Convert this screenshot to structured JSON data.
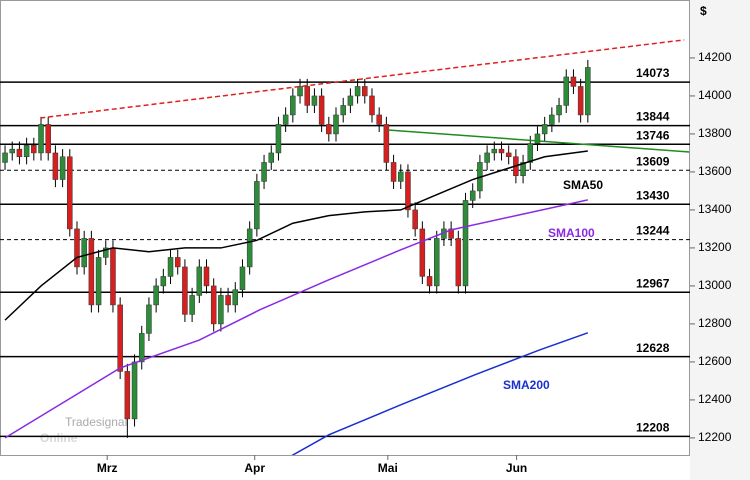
{
  "chart_data": {
    "type": "candlestick",
    "currency_label": "$",
    "watermark": {
      "brand": "Tradesignal",
      "product": "Online"
    },
    "xlim": [
      -0.7,
      95.2
    ],
    "xticks": [
      {
        "value": 14.2,
        "label": "Mrz"
      },
      {
        "value": 34.7,
        "label": "Apr"
      },
      {
        "value": 53.2,
        "label": "Mai"
      },
      {
        "value": 71.1,
        "label": "Jun"
      }
    ],
    "ylim": [
      12110,
      14505
    ],
    "yticks": [
      12200,
      12400,
      12600,
      12800,
      13000,
      13200,
      13400,
      13600,
      13800,
      14000,
      14200
    ],
    "up_color": "#2e8b3a",
    "down_color": "#d62020",
    "open": [
      13650,
      13700,
      13720,
      13680,
      13740,
      13700,
      13850,
      13700,
      13560,
      13680,
      13300,
      13100,
      13250,
      12900,
      13150,
      13200,
      12900,
      12550,
      12300,
      12600,
      12750,
      12900,
      13000,
      13050,
      13150,
      13100,
      12850,
      12950,
      13100,
      13000,
      12800,
      12950,
      12900,
      12980,
      13100,
      13300,
      13550,
      13650,
      13700,
      13850,
      13900,
      14000,
      14050,
      13950,
      14000,
      13850,
      13800,
      13900,
      13950,
      14000,
      14050,
      14000,
      13900,
      13850,
      13650,
      13550,
      13600,
      13400,
      13300,
      13050,
      13000,
      13250,
      13300,
      13250,
      13000,
      13450,
      13500,
      13650,
      13700,
      13720,
      13700,
      13680,
      13580,
      13650,
      13750,
      13800,
      13850,
      13900,
      13950,
      14100,
      14050,
      13900
    ],
    "high": [
      13740,
      13760,
      13760,
      13780,
      13780,
      13890,
      13890,
      13740,
      13720,
      13720,
      13340,
      13290,
      13290,
      13190,
      13240,
      13240,
      12940,
      12590,
      12640,
      12790,
      12940,
      13040,
      13090,
      13190,
      13190,
      13140,
      12990,
      13140,
      13140,
      13040,
      12990,
      12990,
      13020,
      13140,
      13340,
      13590,
      13690,
      13740,
      13890,
      13940,
      14040,
      14090,
      14090,
      14040,
      14040,
      13890,
      13940,
      13990,
      14040,
      14090,
      14090,
      14040,
      13940,
      13890,
      13690,
      13640,
      13640,
      13440,
      13340,
      13090,
      13290,
      13340,
      13340,
      13290,
      13490,
      13540,
      13690,
      13740,
      13760,
      13760,
      13740,
      13720,
      13690,
      13790,
      13840,
      13890,
      13940,
      13990,
      14140,
      14140,
      14090,
      14190
    ],
    "low": [
      13610,
      13660,
      13640,
      13640,
      13660,
      13660,
      13660,
      13520,
      13520,
      13260,
      13060,
      13060,
      12860,
      12860,
      13110,
      12860,
      12510,
      12200,
      12260,
      12560,
      12710,
      12860,
      12960,
      13010,
      13060,
      12810,
      12810,
      12910,
      12960,
      12760,
      12760,
      12860,
      12860,
      12940,
      13060,
      13260,
      13510,
      13610,
      13660,
      13810,
      13860,
      13960,
      13910,
      13910,
      13810,
      13760,
      13760,
      13860,
      13910,
      13960,
      13960,
      13860,
      13810,
      13610,
      13510,
      13510,
      13360,
      13260,
      13010,
      12960,
      12960,
      13210,
      13210,
      12960,
      12960,
      13410,
      13460,
      13610,
      13660,
      13660,
      13640,
      13540,
      13540,
      13610,
      13710,
      13760,
      13810,
      13860,
      13910,
      14010,
      13860,
      13860
    ],
    "close": [
      13700,
      13720,
      13680,
      13740,
      13700,
      13850,
      13700,
      13560,
      13680,
      13300,
      13100,
      13250,
      12900,
      13150,
      13200,
      12900,
      12550,
      12300,
      12600,
      12750,
      12900,
      13000,
      13050,
      13150,
      13100,
      12850,
      12950,
      13100,
      13000,
      12800,
      12950,
      12900,
      12980,
      13100,
      13300,
      13550,
      13650,
      13700,
      13850,
      13900,
      14000,
      14050,
      13950,
      14000,
      13850,
      13800,
      13900,
      13950,
      14000,
      14050,
      14000,
      13900,
      13850,
      13650,
      13550,
      13600,
      13400,
      13300,
      13050,
      13000,
      13250,
      13300,
      13250,
      13000,
      13450,
      13500,
      13650,
      13700,
      13720,
      13700,
      13680,
      13580,
      13650,
      13750,
      13800,
      13850,
      13900,
      13950,
      14100,
      14050,
      13900,
      14150
    ],
    "series": [
      {
        "name": "SMA50",
        "color": "#000000",
        "x": [
          0,
          5,
          10,
          15,
          20,
          25,
          30,
          35,
          40,
          45,
          50,
          55,
          60,
          65,
          70,
          75,
          81
        ],
        "values": [
          12820,
          13000,
          13150,
          13200,
          13180,
          13200,
          13200,
          13240,
          13330,
          13370,
          13390,
          13400,
          13480,
          13560,
          13620,
          13680,
          13710
        ]
      },
      {
        "name": "SMA100",
        "color": "#8a2be2",
        "x": [
          0,
          16,
          27,
          35.4,
          45,
          55,
          62,
          71.5,
          81
        ],
        "values": [
          12200,
          12568,
          12715,
          12874,
          13032,
          13190,
          13295,
          13374,
          13453
        ]
      },
      {
        "name": "SMA200",
        "color": "#1a2fd0",
        "x": [
          39.3,
          45,
          55,
          65.3,
          74.3,
          81
        ],
        "values": [
          12095,
          12216,
          12374,
          12532,
          12663,
          12753
        ]
      }
    ],
    "trendlines": [
      {
        "color": "#e02020",
        "style": "dashed",
        "x": [
          4.9,
          94.4
        ],
        "values": [
          13884,
          14295
        ]
      },
      {
        "color": "#1e8c1e",
        "style": "solid",
        "x": [
          53.2,
          95.1
        ],
        "values": [
          13821,
          13705
        ]
      }
    ],
    "levels": [
      {
        "value": 14073,
        "style": "solid"
      },
      {
        "value": 13844,
        "style": "solid"
      },
      {
        "value": 13746,
        "style": "solid"
      },
      {
        "value": 13609,
        "style": "dashed"
      },
      {
        "value": 13430,
        "style": "solid"
      },
      {
        "value": 13244,
        "style": "dashed"
      },
      {
        "value": 12967,
        "style": "solid"
      },
      {
        "value": 12628,
        "style": "solid"
      },
      {
        "value": 12208,
        "style": "solid"
      }
    ]
  }
}
